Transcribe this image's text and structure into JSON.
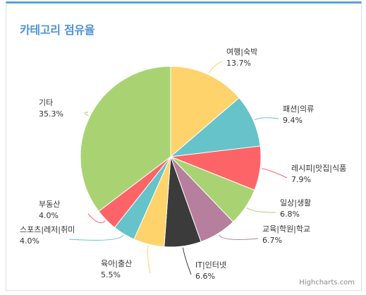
{
  "widget": {
    "title": "카테고리 점유율",
    "credit": "Highcharts.com"
  },
  "chart_data": {
    "type": "pie",
    "slices": [
      {
        "name": "여행|숙박",
        "value": 13.7,
        "label": "13.7%",
        "color": "#ffd36b"
      },
      {
        "name": "패션|의류",
        "value": 9.4,
        "label": "9.4%",
        "color": "#66c3c9"
      },
      {
        "name": "레시피|맛집|식품",
        "value": 7.9,
        "label": "7.9%",
        "color": "#fd6467"
      },
      {
        "name": "일상|생활",
        "value": 6.8,
        "label": "6.8%",
        "color": "#a9d373"
      },
      {
        "name": "교육|학원|학교",
        "value": 6.7,
        "label": "6.7%",
        "color": "#b57f9d"
      },
      {
        "name": "IT|인터넷",
        "value": 6.6,
        "label": "6.6%",
        "color": "#3b3b3b"
      },
      {
        "name": "육아|출산",
        "value": 5.5,
        "label": "5.5%",
        "color": "#ffd36b"
      },
      {
        "name": "스포츠|레저|취미",
        "value": 4.0,
        "label": "4.0%",
        "color": "#66c3c9"
      },
      {
        "name": "부동산",
        "value": 4.0,
        "label": "4.0%",
        "color": "#fd6467"
      },
      {
        "name": "기타",
        "value": 35.3,
        "label": "35.3%",
        "color": "#a9d373"
      }
    ]
  }
}
